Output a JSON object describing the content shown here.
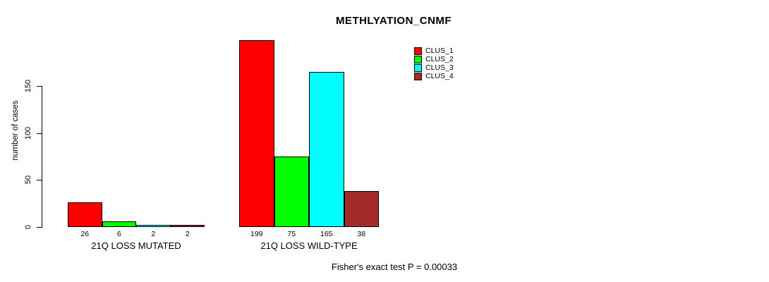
{
  "chart_data": {
    "type": "bar",
    "title": "METHLYATION_CNMF",
    "ylabel": "number of cases",
    "xlabel": "",
    "ylim": [
      0,
      150
    ],
    "yticks": [
      0,
      50,
      100,
      150
    ],
    "grid": false,
    "legend_position": "top-right",
    "categories": [
      "21Q LOSS MUTATED",
      "21Q LOSS WILD-TYPE"
    ],
    "series": [
      {
        "name": "CLUS_1",
        "color": "#FF0000",
        "values": [
          26,
          199
        ]
      },
      {
        "name": "CLUS_2",
        "color": "#00FF00",
        "values": [
          6,
          75
        ]
      },
      {
        "name": "CLUS_3",
        "color": "#00FFFF",
        "values": [
          2,
          165
        ]
      },
      {
        "name": "CLUS_4",
        "color": "#A52A2A",
        "values": [
          2,
          38
        ]
      }
    ],
    "groups": [
      {
        "label": "21Q LOSS MUTATED",
        "values": [
          26,
          6,
          2,
          2
        ]
      },
      {
        "label": "21Q LOSS WILD-TYPE",
        "values": [
          199,
          75,
          165,
          38
        ]
      }
    ],
    "annotation": "Fisher's exact test P = 0.00033"
  }
}
